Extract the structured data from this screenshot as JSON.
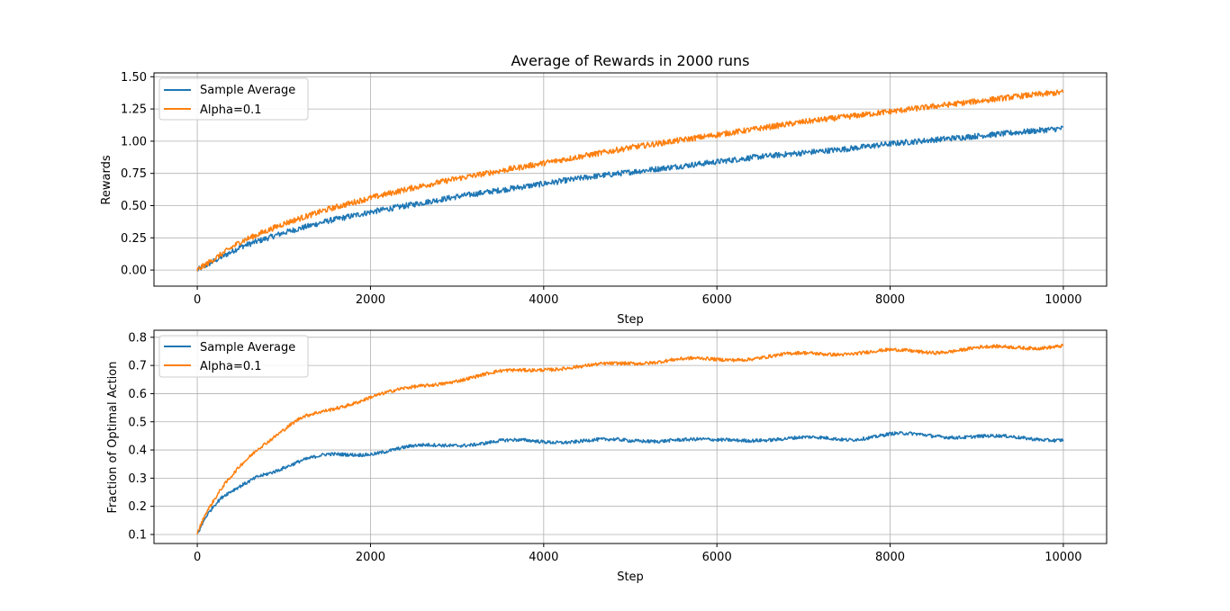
{
  "chart_data": [
    {
      "type": "line",
      "title": "Average of Rewards in 2000 runs",
      "xlabel": "Step",
      "ylabel": "Rewards",
      "xlim": [
        -500,
        10500
      ],
      "ylim": [
        -0.125,
        1.53
      ],
      "xticks": [
        0,
        2000,
        4000,
        6000,
        8000,
        10000
      ],
      "xtick_labels": [
        "0",
        "2000",
        "4000",
        "6000",
        "8000",
        "10000"
      ],
      "yticks": [
        0.0,
        0.25,
        0.5,
        0.75,
        1.0,
        1.25,
        1.5
      ],
      "ytick_labels": [
        "0.00",
        "0.25",
        "0.50",
        "0.75",
        "1.00",
        "1.25",
        "1.50"
      ],
      "grid": true,
      "legend_position": "upper-left",
      "x": [
        0,
        500,
        1000,
        1500,
        2000,
        2500,
        3000,
        3500,
        4000,
        4500,
        5000,
        5500,
        6000,
        6500,
        7000,
        7500,
        8000,
        8500,
        9000,
        9500,
        10000
      ],
      "series": [
        {
          "name": "Sample Average",
          "color": "#1f77b4",
          "values": [
            0.0,
            0.18,
            0.29,
            0.38,
            0.45,
            0.51,
            0.57,
            0.62,
            0.67,
            0.72,
            0.76,
            0.8,
            0.84,
            0.88,
            0.91,
            0.94,
            0.98,
            1.01,
            1.04,
            1.07,
            1.1
          ]
        },
        {
          "name": "Alpha=0.1",
          "color": "#ff7f0e",
          "values": [
            0.0,
            0.22,
            0.36,
            0.47,
            0.56,
            0.64,
            0.71,
            0.77,
            0.83,
            0.89,
            0.95,
            1.0,
            1.05,
            1.1,
            1.15,
            1.19,
            1.23,
            1.27,
            1.31,
            1.35,
            1.38
          ]
        }
      ]
    },
    {
      "type": "line",
      "title": "",
      "xlabel": "Step",
      "ylabel": "Fraction of Optimal Action",
      "xlim": [
        -500,
        10500
      ],
      "ylim": [
        0.068,
        0.825
      ],
      "xticks": [
        0,
        2000,
        4000,
        6000,
        8000,
        10000
      ],
      "xtick_labels": [
        "0",
        "2000",
        "4000",
        "6000",
        "8000",
        "10000"
      ],
      "yticks": [
        0.1,
        0.2,
        0.3,
        0.4,
        0.5,
        0.6,
        0.7,
        0.8
      ],
      "ytick_labels": [
        "0.1",
        "0.2",
        "0.3",
        "0.4",
        "0.5",
        "0.6",
        "0.7",
        "0.8"
      ],
      "grid": true,
      "legend_position": "upper-left",
      "x": [
        0,
        100,
        200,
        300,
        400,
        500,
        600,
        700,
        800,
        1000,
        1200,
        1500,
        2000,
        2500,
        3000,
        3500,
        4000,
        4500,
        5000,
        5500,
        6000,
        6500,
        7000,
        7500,
        8000,
        8500,
        9000,
        9500,
        10000
      ],
      "series": [
        {
          "name": "Sample Average",
          "color": "#1f77b4",
          "values": [
            0.1,
            0.16,
            0.2,
            0.23,
            0.25,
            0.27,
            0.29,
            0.31,
            0.32,
            0.34,
            0.36,
            0.38,
            0.39,
            0.41,
            0.42,
            0.43,
            0.43,
            0.435,
            0.43,
            0.44,
            0.43,
            0.44,
            0.44,
            0.44,
            0.455,
            0.45,
            0.45,
            0.44,
            0.44
          ]
        },
        {
          "name": "Alpha=0.1",
          "color": "#ff7f0e",
          "values": [
            0.1,
            0.17,
            0.22,
            0.27,
            0.31,
            0.35,
            0.38,
            0.41,
            0.43,
            0.47,
            0.51,
            0.54,
            0.59,
            0.62,
            0.65,
            0.675,
            0.69,
            0.695,
            0.71,
            0.72,
            0.72,
            0.73,
            0.74,
            0.745,
            0.75,
            0.75,
            0.76,
            0.765,
            0.77
          ]
        }
      ]
    }
  ]
}
